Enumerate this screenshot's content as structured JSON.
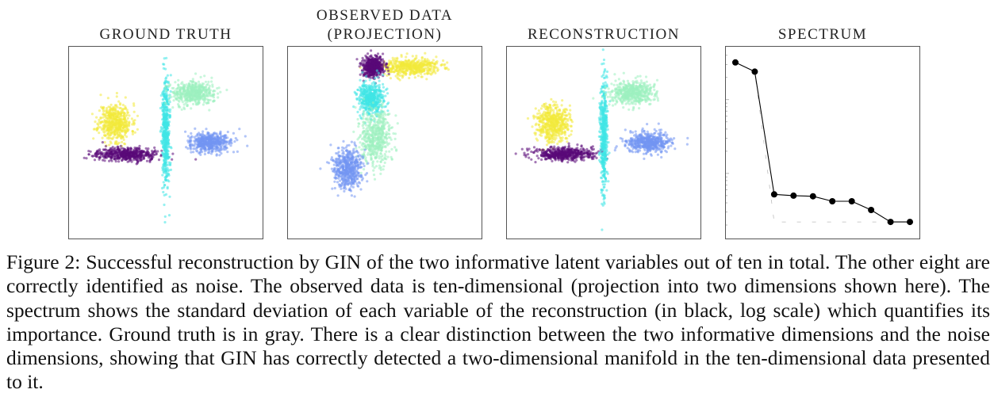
{
  "figure": {
    "titles": {
      "ground_truth": "GROUND TRUTH",
      "observed_line1": "OBSERVED DATA",
      "observed_line2": "(PROJECTION)",
      "reconstruction": "RECONSTRUCTION",
      "spectrum": "SPECTRUM"
    },
    "caption": "Figure 2: Successful reconstruction by GIN of the two informative latent variables out of ten in total. The other eight are correctly identified as noise. The observed data is ten-dimensional (projection into two dimensions shown here). The spectrum shows the standard deviation of each variable of the reconstruction (in black, log scale) which quantifies its importance. Ground truth is in gray. There is a clear distinction between the two informative dimensions and the noise dimensions, showing that GIN has correctly detected a two-dimensional manifold in the ten-dimensional data presented to it."
  },
  "colors": {
    "purple": "#5a0a78",
    "yellow": "#f2ea3a",
    "cyan": "#3fe6e6",
    "mint": "#9df0bf",
    "blue": "#7396f2",
    "reconstruction_line": "#000000",
    "ground_truth": "#bdbdbd"
  },
  "chart_data": [
    {
      "type": "scatter",
      "panel": "ground_truth",
      "title": "GROUND TRUTH",
      "clusters": [
        {
          "color": "yellow",
          "center": [
            -2.2,
            0.7
          ],
          "spread": [
            0.7,
            0.65
          ]
        },
        {
          "color": "purple",
          "center": [
            -1.7,
            -0.4
          ],
          "spread": [
            1.3,
            0.22
          ]
        },
        {
          "color": "cyan",
          "center": [
            0.0,
            0.3
          ],
          "spread": [
            0.16,
            1.9
          ]
        },
        {
          "color": "mint",
          "center": [
            1.2,
            1.7
          ],
          "spread": [
            0.9,
            0.4
          ]
        },
        {
          "color": "blue",
          "center": [
            1.9,
            0.0
          ],
          "spread": [
            0.9,
            0.33
          ]
        }
      ]
    },
    {
      "type": "scatter",
      "panel": "observed",
      "title": "OBSERVED DATA (PROJECTION)",
      "clusters": [
        {
          "color": "yellow",
          "center": [
            1.0,
            2.6
          ],
          "spread": [
            1.4,
            0.3
          ]
        },
        {
          "color": "purple",
          "center": [
            -0.5,
            2.6
          ],
          "spread": [
            0.45,
            0.35
          ]
        },
        {
          "color": "cyan",
          "center": [
            -0.6,
            1.5
          ],
          "spread": [
            0.55,
            0.55
          ]
        },
        {
          "color": "mint",
          "center": [
            -0.4,
            0.2
          ],
          "spread": [
            0.7,
            0.9
          ]
        },
        {
          "color": "blue",
          "center": [
            -1.6,
            -0.9
          ],
          "spread": [
            0.6,
            0.7
          ]
        }
      ]
    },
    {
      "type": "scatter",
      "panel": "reconstruction",
      "title": "RECONSTRUCTION",
      "clusters": [
        {
          "color": "yellow",
          "center": [
            -2.2,
            0.7
          ],
          "spread": [
            0.7,
            0.65
          ]
        },
        {
          "color": "purple",
          "center": [
            -1.7,
            -0.4
          ],
          "spread": [
            1.3,
            0.22
          ]
        },
        {
          "color": "cyan",
          "center": [
            0.0,
            0.3
          ],
          "spread": [
            0.16,
            1.9
          ]
        },
        {
          "color": "mint",
          "center": [
            1.2,
            1.7
          ],
          "spread": [
            0.9,
            0.4
          ]
        },
        {
          "color": "blue",
          "center": [
            1.9,
            0.0
          ],
          "spread": [
            0.9,
            0.33
          ]
        }
      ]
    },
    {
      "type": "line",
      "panel": "spectrum",
      "title": "SPECTRUM",
      "yscale": "log",
      "x": [
        1,
        2,
        3,
        4,
        5,
        6,
        7,
        8,
        9,
        10
      ],
      "series": [
        {
          "color": "reconstruction_line",
          "values": [
            3.2,
            2.4,
            0.052,
            0.05,
            0.049,
            0.042,
            0.042,
            0.032,
            0.022,
            0.022
          ]
        },
        {
          "color": "ground_truth",
          "values": [
            3.2,
            2.4,
            0.022,
            0.022,
            0.022,
            0.022,
            0.022,
            0.022,
            0.022,
            0.022
          ]
        }
      ],
      "ylim": [
        0.016,
        4.5
      ]
    }
  ]
}
